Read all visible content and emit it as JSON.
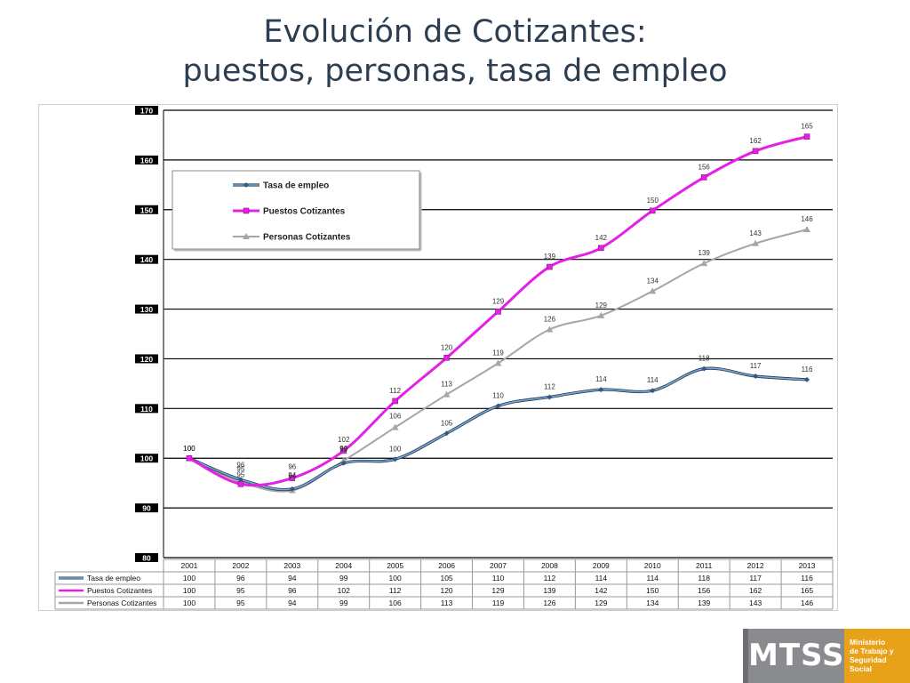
{
  "slide": {
    "title_line1": "Evolución de Cotizantes:",
    "title_line2": "puestos, personas, tasa de empleo"
  },
  "logo": {
    "main": "MTSS",
    "side_lines": [
      "Ministerio",
      "de Trabajo y",
      "Seguridad",
      "Social"
    ]
  },
  "colors": {
    "tasa": "#3d6c9a",
    "puestos": "#e61fe6",
    "personas": "#a6a6a6",
    "grid": "#000000"
  },
  "chart_data": {
    "type": "line",
    "title": "",
    "xlabel": "",
    "ylabel": "",
    "ylim": [
      80,
      170
    ],
    "yticks": [
      80,
      90,
      100,
      110,
      120,
      130,
      140,
      150,
      160,
      170
    ],
    "grid": true,
    "legend_position": "top-left",
    "categories": [
      "2001",
      "2002",
      "2003",
      "2004",
      "2005",
      "2006",
      "2007",
      "2008",
      "2009",
      "2010",
      "2011",
      "2012",
      "2013"
    ],
    "series": [
      {
        "name": "Tasa de empleo",
        "values": [
          100,
          96,
          94,
          99,
          100,
          105,
          110,
          112,
          114,
          114,
          118,
          117,
          116
        ],
        "plot": [
          100,
          95.7,
          93.8,
          99,
          99.8,
          105,
          110.5,
          112.3,
          113.8,
          113.6,
          118,
          116.5,
          115.8
        ],
        "marker": "diamond"
      },
      {
        "name": "Puestos Cotizantes",
        "values": [
          100,
          95,
          96,
          102,
          112,
          120,
          129,
          139,
          142,
          150,
          156,
          162,
          165
        ],
        "plot": [
          100,
          94.8,
          96,
          101.5,
          111.5,
          120.2,
          129.5,
          138.5,
          142.3,
          149.8,
          156.5,
          161.8,
          164.7
        ],
        "marker": "square"
      },
      {
        "name": "Personas Cotizantes",
        "values": [
          100,
          95,
          94,
          99,
          106,
          113,
          119,
          126,
          129,
          134,
          139,
          143,
          146
        ],
        "plot": [
          100,
          95.2,
          93.5,
          99.5,
          106.2,
          112.8,
          119.1,
          125.9,
          128.7,
          133.6,
          139.2,
          143.2,
          146
        ],
        "marker": "triangle"
      }
    ],
    "point_labels": {
      "Tasa de empleo": [
        "100",
        "96",
        "94",
        "99",
        "100",
        "105",
        "110",
        "112",
        "114",
        "114",
        "118",
        "117",
        "116"
      ],
      "Puestos Cotizantes": [
        "100",
        "95",
        "96",
        "102",
        "112",
        "120",
        "129",
        "139",
        "142",
        "150",
        "156",
        "162",
        "165"
      ],
      "Personas Cotizantes": [
        "100",
        "95",
        "94",
        "99",
        "106",
        "113",
        "119",
        "126",
        "129",
        "134",
        "139",
        "143",
        "146"
      ]
    }
  }
}
